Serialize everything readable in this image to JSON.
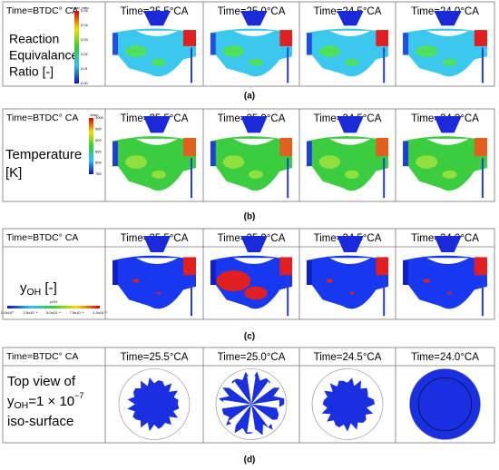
{
  "panels": [
    {
      "caption": "(a)",
      "header": "Time=BTDC° CA",
      "times": [
        "Time=25.5°CA",
        "Time=25.0°CA",
        "Time=24.5°CA",
        "Time=24.0°CA"
      ],
      "label": [
        "Reaction",
        "Equivalance",
        "Ratio [-]"
      ],
      "colorbar": {
        "title": "equiv_ratio",
        "ticks": [
          "0.05",
          "0.04",
          "0.03",
          "0.02",
          "0.01",
          "0.00"
        ]
      }
    },
    {
      "caption": "(b)",
      "header": "Time=BTDC° CA",
      "times": [
        "Time=25.5°CA",
        "Time=25.0°CA",
        "Time=24.5°CA",
        "Time=24.0°CA"
      ],
      "label": [
        "Temperature",
        "[K]"
      ],
      "colorbar": {
        "title": "temp",
        "ticks": [
          "1000",
          "950",
          "900",
          "850",
          "800",
          "750"
        ]
      }
    },
    {
      "caption": "(c)",
      "header": "Time=BTDC° CA",
      "times": [
        "Time=25.5°CA",
        "Time=25.0°CA",
        "Time=24.5°CA",
        "Time=24.0°CA"
      ],
      "label": [
        [
          "y",
          "OH",
          " [-]"
        ]
      ],
      "colorbar": {
        "title": "yOH",
        "ticks": [
          "0.0x10⁰",
          "2.5x10⁻⁴",
          "5.0x10⁻⁴",
          "7.5x10⁻⁴",
          "1.0x10⁻³"
        ]
      }
    },
    {
      "caption": "(d)",
      "header": "Time=BTDC° CA",
      "times": [
        "Time=25.5°CA",
        "Time=25.0°CA",
        "Time=24.5°CA",
        "Time=24.0°CA"
      ],
      "label": [
        "Top view of",
        [
          "y",
          "OH",
          "=1 × 10",
          "−7"
        ],
        "iso-surface"
      ]
    }
  ]
}
